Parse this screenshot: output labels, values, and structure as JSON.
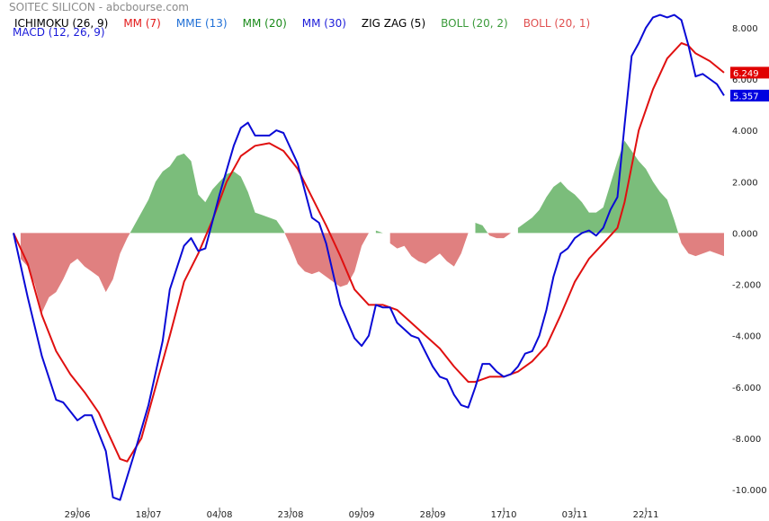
{
  "header": {
    "title": "SOITEC SILICON - abcbourse.com",
    "macd_label": "MACD (12, 26, 9)"
  },
  "legend": [
    {
      "label": "ICHIMOKU (26, 9)",
      "color": "#000000"
    },
    {
      "label": "MM (7)",
      "color": "#e31a1a"
    },
    {
      "label": "MME (13)",
      "color": "#1f6fd6"
    },
    {
      "label": "MM (20)",
      "color": "#1a8a1a"
    },
    {
      "label": "MM (30)",
      "color": "#1a1ad9"
    },
    {
      "label": "ZIG ZAG (5)",
      "color": "#000000"
    },
    {
      "label": "BOLL (20, 2)",
      "color": "#3a9a3a"
    },
    {
      "label": "BOLL (20, 1)",
      "color": "#e05050"
    }
  ],
  "chart_data": {
    "type": "line",
    "ylim": [
      -10.8,
      8.8
    ],
    "y_ticks": [
      8,
      6,
      4,
      2,
      0,
      -2,
      -4,
      -6,
      -8,
      -10
    ],
    "y_tick_labels": [
      "8.000",
      "6.000",
      "4.000",
      "2.000",
      "0.000",
      "-2.000",
      "-4.000",
      "-6.000",
      "-8.000",
      "-10.000"
    ],
    "x_ticks": [
      {
        "label": "29/06",
        "index": 9
      },
      {
        "label": "18/07",
        "index": 19
      },
      {
        "label": "04/08",
        "index": 29
      },
      {
        "label": "23/08",
        "index": 39
      },
      {
        "label": "09/09",
        "index": 49
      },
      {
        "label": "28/09",
        "index": 59
      },
      {
        "label": "17/10",
        "index": 69
      },
      {
        "label": "03/11",
        "index": 79
      },
      {
        "label": "22/11",
        "index": 89
      }
    ],
    "n_points": 100,
    "macd_color": "#0a0ad6",
    "signal_color": "#e01010",
    "pos_hist_color": "#7bbd7b",
    "neg_hist_color": "#e08080",
    "last_values": [
      {
        "label": "6.249",
        "value": 6.249,
        "color": "#e00000"
      },
      {
        "label": "5.357",
        "value": 5.357,
        "color": "#0000e0"
      }
    ],
    "macd_keypoints": [
      [
        0,
        0
      ],
      [
        2,
        -2.5
      ],
      [
        4,
        -4.8
      ],
      [
        6,
        -6.5
      ],
      [
        7,
        -6.6
      ],
      [
        9,
        -7.3
      ],
      [
        10,
        -7.1
      ],
      [
        11,
        -7.1
      ],
      [
        13,
        -8.5
      ],
      [
        14,
        -10.3
      ],
      [
        15,
        -10.4
      ],
      [
        17,
        -8.6
      ],
      [
        19,
        -6.7
      ],
      [
        21,
        -4.2
      ],
      [
        22,
        -2.2
      ],
      [
        24,
        -0.5
      ],
      [
        25,
        -0.2
      ],
      [
        26,
        -0.7
      ],
      [
        27,
        -0.6
      ],
      [
        29,
        1.5
      ],
      [
        31,
        3.4
      ],
      [
        32,
        4.1
      ],
      [
        33,
        4.3
      ],
      [
        34,
        3.8
      ],
      [
        36,
        3.8
      ],
      [
        37,
        4.0
      ],
      [
        38,
        3.9
      ],
      [
        40,
        2.7
      ],
      [
        42,
        0.6
      ],
      [
        43,
        0.4
      ],
      [
        44,
        -0.4
      ],
      [
        46,
        -2.8
      ],
      [
        48,
        -4.1
      ],
      [
        49,
        -4.4
      ],
      [
        50,
        -4.0
      ],
      [
        51,
        -2.8
      ],
      [
        52,
        -2.9
      ],
      [
        53,
        -2.9
      ],
      [
        54,
        -3.5
      ],
      [
        56,
        -4.0
      ],
      [
        57,
        -4.1
      ],
      [
        59,
        -5.2
      ],
      [
        60,
        -5.6
      ],
      [
        61,
        -5.7
      ],
      [
        62,
        -6.3
      ],
      [
        63,
        -6.7
      ],
      [
        64,
        -6.8
      ],
      [
        65,
        -6.0
      ],
      [
        66,
        -5.1
      ],
      [
        67,
        -5.1
      ],
      [
        68,
        -5.4
      ],
      [
        69,
        -5.6
      ],
      [
        70,
        -5.5
      ],
      [
        71,
        -5.2
      ],
      [
        72,
        -4.7
      ],
      [
        73,
        -4.6
      ],
      [
        74,
        -4.0
      ],
      [
        75,
        -3.0
      ],
      [
        76,
        -1.7
      ],
      [
        77,
        -0.8
      ],
      [
        78,
        -0.6
      ],
      [
        79,
        -0.2
      ],
      [
        80,
        0.0
      ],
      [
        81,
        0.1
      ],
      [
        82,
        -0.1
      ],
      [
        83,
        0.2
      ],
      [
        84,
        0.9
      ],
      [
        85,
        1.4
      ],
      [
        86,
        4.2
      ],
      [
        87,
        6.9
      ],
      [
        88,
        7.4
      ],
      [
        89,
        8.0
      ],
      [
        90,
        8.4
      ],
      [
        91,
        8.5
      ],
      [
        92,
        8.4
      ],
      [
        93,
        8.5
      ],
      [
        94,
        8.3
      ],
      [
        95,
        7.3
      ],
      [
        96,
        6.1
      ],
      [
        97,
        6.2
      ],
      [
        98,
        6.0
      ],
      [
        99,
        5.8
      ],
      [
        100,
        5.357
      ]
    ],
    "signal_keypoints": [
      [
        0,
        0
      ],
      [
        2,
        -1.2
      ],
      [
        4,
        -3.2
      ],
      [
        6,
        -4.6
      ],
      [
        8,
        -5.5
      ],
      [
        10,
        -6.2
      ],
      [
        12,
        -7.0
      ],
      [
        14,
        -8.2
      ],
      [
        15,
        -8.8
      ],
      [
        16,
        -8.9
      ],
      [
        18,
        -8.0
      ],
      [
        20,
        -6.0
      ],
      [
        22,
        -4.0
      ],
      [
        24,
        -1.9
      ],
      [
        26,
        -0.8
      ],
      [
        28,
        0.5
      ],
      [
        30,
        2.0
      ],
      [
        32,
        3.0
      ],
      [
        34,
        3.4
      ],
      [
        36,
        3.5
      ],
      [
        38,
        3.2
      ],
      [
        40,
        2.5
      ],
      [
        42,
        1.4
      ],
      [
        44,
        0.3
      ],
      [
        46,
        -0.9
      ],
      [
        48,
        -2.2
      ],
      [
        50,
        -2.8
      ],
      [
        52,
        -2.8
      ],
      [
        54,
        -3.0
      ],
      [
        56,
        -3.5
      ],
      [
        58,
        -4.0
      ],
      [
        60,
        -4.5
      ],
      [
        62,
        -5.2
      ],
      [
        64,
        -5.8
      ],
      [
        65,
        -5.8
      ],
      [
        67,
        -5.6
      ],
      [
        69,
        -5.6
      ],
      [
        71,
        -5.4
      ],
      [
        73,
        -5.0
      ],
      [
        75,
        -4.4
      ],
      [
        77,
        -3.2
      ],
      [
        79,
        -1.9
      ],
      [
        81,
        -1.0
      ],
      [
        83,
        -0.4
      ],
      [
        85,
        0.2
      ],
      [
        86,
        1.2
      ],
      [
        88,
        4.0
      ],
      [
        90,
        5.6
      ],
      [
        92,
        6.8
      ],
      [
        94,
        7.4
      ],
      [
        95,
        7.3
      ],
      [
        96,
        7.0
      ],
      [
        98,
        6.7
      ],
      [
        100,
        6.249
      ]
    ],
    "hist_keypoints": [
      [
        0,
        0
      ],
      [
        1,
        -1.0
      ],
      [
        2,
        -1.3
      ],
      [
        3,
        -2.0
      ],
      [
        4,
        -3.1
      ],
      [
        5,
        -2.5
      ],
      [
        6,
        -2.3
      ],
      [
        7,
        -1.8
      ],
      [
        8,
        -1.2
      ],
      [
        9,
        -1.0
      ],
      [
        10,
        -1.3
      ],
      [
        11,
        -1.5
      ],
      [
        12,
        -1.7
      ],
      [
        13,
        -2.3
      ],
      [
        14,
        -1.8
      ],
      [
        15,
        -0.8
      ],
      [
        16,
        -0.2
      ],
      [
        17,
        0.3
      ],
      [
        18,
        0.8
      ],
      [
        19,
        1.3
      ],
      [
        20,
        2.0
      ],
      [
        21,
        2.4
      ],
      [
        22,
        2.6
      ],
      [
        23,
        3.0
      ],
      [
        24,
        3.1
      ],
      [
        25,
        2.8
      ],
      [
        26,
        1.5
      ],
      [
        27,
        1.2
      ],
      [
        28,
        1.7
      ],
      [
        29,
        2.0
      ],
      [
        30,
        2.3
      ],
      [
        31,
        2.4
      ],
      [
        32,
        2.2
      ],
      [
        33,
        1.6
      ],
      [
        34,
        0.8
      ],
      [
        35,
        0.7
      ],
      [
        36,
        0.6
      ],
      [
        37,
        0.5
      ],
      [
        38,
        0.1
      ],
      [
        39,
        -0.5
      ],
      [
        40,
        -1.2
      ],
      [
        41,
        -1.5
      ],
      [
        42,
        -1.6
      ],
      [
        43,
        -1.5
      ],
      [
        44,
        -1.7
      ],
      [
        45,
        -1.9
      ],
      [
        46,
        -2.1
      ],
      [
        47,
        -2.0
      ],
      [
        48,
        -1.5
      ],
      [
        49,
        -0.5
      ],
      [
        50,
        0.0
      ],
      [
        51,
        0.1
      ],
      [
        52,
        0.0
      ],
      [
        53,
        -0.4
      ],
      [
        54,
        -0.6
      ],
      [
        55,
        -0.5
      ],
      [
        56,
        -0.9
      ],
      [
        57,
        -1.1
      ],
      [
        58,
        -1.2
      ],
      [
        59,
        -1.0
      ],
      [
        60,
        -0.8
      ],
      [
        61,
        -1.1
      ],
      [
        62,
        -1.3
      ],
      [
        63,
        -0.8
      ],
      [
        64,
        0.0
      ],
      [
        65,
        0.4
      ],
      [
        66,
        0.3
      ],
      [
        67,
        -0.1
      ],
      [
        68,
        -0.2
      ],
      [
        69,
        -0.2
      ],
      [
        70,
        0.0
      ],
      [
        71,
        0.2
      ],
      [
        72,
        0.4
      ],
      [
        73,
        0.6
      ],
      [
        74,
        0.9
      ],
      [
        75,
        1.4
      ],
      [
        76,
        1.8
      ],
      [
        77,
        2.0
      ],
      [
        78,
        1.7
      ],
      [
        79,
        1.5
      ],
      [
        80,
        1.2
      ],
      [
        81,
        0.8
      ],
      [
        82,
        0.8
      ],
      [
        83,
        1.0
      ],
      [
        84,
        1.9
      ],
      [
        85,
        2.8
      ],
      [
        86,
        3.6
      ],
      [
        87,
        3.2
      ],
      [
        88,
        2.8
      ],
      [
        89,
        2.5
      ],
      [
        90,
        2.0
      ],
      [
        91,
        1.6
      ],
      [
        92,
        1.3
      ],
      [
        93,
        0.5
      ],
      [
        94,
        -0.4
      ],
      [
        95,
        -0.8
      ],
      [
        96,
        -0.9
      ],
      [
        97,
        -0.8
      ],
      [
        98,
        -0.7
      ],
      [
        99,
        -0.8
      ],
      [
        100,
        -0.9
      ]
    ]
  }
}
